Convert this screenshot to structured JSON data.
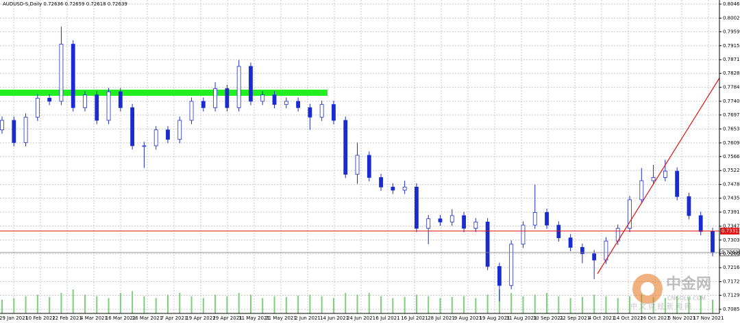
{
  "chart_data": {
    "type": "candlestick",
    "title": "AUDUSD-S,Daily  0.72636 0.72659 0.72618 0.72639",
    "x_labels": [
      "29 Jan 2021",
      "10 Feb 2021",
      "22 Feb 2021",
      "4 Mar 2021",
      "16 Mar 2021",
      "26 Mar 2021",
      "7 Apr 2021",
      "19 Apr 2021",
      "29 Apr 2021",
      "11 May 2021",
      "21 May 2021",
      "2 Jun 2021",
      "14 Jun 2021",
      "24 Jun 2021",
      "6 Jul 2021",
      "16 Jul 2021",
      "28 Jul 2021",
      "9 Aug 2021",
      "19 Aug 2021",
      "31 Aug 2021",
      "10 Sep 2021",
      "22 Sep 2021",
      "4 Oct 2021",
      "14 Oct 2021",
      "26 Oct 2021",
      "5 Nov 2021",
      "17 Nov 2021"
    ],
    "open": [
      0.765,
      0.768,
      0.761,
      0.769,
      0.775,
      0.774,
      0.792,
      0.772,
      0.776,
      0.768,
      0.777,
      0.772,
      0.76,
      0.76,
      0.765,
      0.762,
      0.768,
      0.774,
      0.772,
      0.778,
      0.772,
      0.785,
      0.774,
      0.776,
      0.773,
      0.774,
      0.772,
      0.769,
      0.773,
      0.768,
      0.751,
      0.757,
      0.75,
      0.747,
      0.746,
      0.747,
      0.734,
      0.737,
      0.736,
      0.738,
      0.734,
      0.736,
      0.722,
      0.716,
      0.729,
      0.735,
      0.739,
      0.735,
      0.731,
      0.728,
      0.726,
      0.724,
      0.73,
      0.734,
      0.743,
      0.749,
      0.75,
      0.752,
      0.744,
      0.738,
      0.733
    ],
    "high": [
      0.7692,
      0.7692,
      0.7702,
      0.7762,
      0.7762,
      0.7975,
      0.7932,
      0.7772,
      0.7772,
      0.7782,
      0.7782,
      0.7732,
      0.7612,
      0.7662,
      0.7662,
      0.7692,
      0.7752,
      0.7752,
      0.78,
      0.7792,
      0.787,
      0.7862,
      0.7772,
      0.7772,
      0.7752,
      0.7752,
      0.7732,
      0.7742,
      0.7742,
      0.7692,
      0.761,
      0.7582,
      0.7512,
      0.7482,
      0.749,
      0.7482,
      0.7382,
      0.7382,
      0.74,
      0.7392,
      0.7372,
      0.7372,
      0.7232,
      0.7302,
      0.7362,
      0.7478,
      0.7402,
      0.7362,
      0.7322,
      0.7292,
      0.7272,
      0.7312,
      0.7352,
      0.7442,
      0.753,
      0.754,
      0.7556,
      0.7532,
      0.7452,
      0.7392,
      0.7342
    ],
    "low": [
      0.7638,
      0.7598,
      0.7598,
      0.7678,
      0.7728,
      0.7728,
      0.7708,
      0.7708,
      0.7668,
      0.7668,
      0.7708,
      0.7588,
      0.753,
      0.7588,
      0.7608,
      0.7608,
      0.7668,
      0.7708,
      0.7708,
      0.7708,
      0.7708,
      0.7728,
      0.7728,
      0.7718,
      0.7718,
      0.7708,
      0.765,
      0.7678,
      0.7668,
      0.7498,
      0.748,
      0.7488,
      0.7458,
      0.7448,
      0.7448,
      0.7328,
      0.729,
      0.7348,
      0.7348,
      0.7328,
      0.7328,
      0.7208,
      0.711,
      0.7148,
      0.7278,
      0.7338,
      0.7338,
      0.7298,
      0.7268,
      0.723,
      0.718,
      0.7228,
      0.7288,
      0.7328,
      0.7418,
      0.7478,
      0.7488,
      0.7428,
      0.7368,
      0.7318,
      0.7252
    ],
    "close": [
      0.768,
      0.761,
      0.769,
      0.775,
      0.774,
      0.792,
      0.772,
      0.776,
      0.768,
      0.777,
      0.772,
      0.76,
      0.76,
      0.765,
      0.762,
      0.768,
      0.774,
      0.772,
      0.778,
      0.772,
      0.785,
      0.774,
      0.776,
      0.773,
      0.774,
      0.772,
      0.769,
      0.773,
      0.768,
      0.751,
      0.757,
      0.75,
      0.747,
      0.746,
      0.747,
      0.734,
      0.737,
      0.736,
      0.738,
      0.734,
      0.736,
      0.722,
      0.716,
      0.729,
      0.735,
      0.739,
      0.735,
      0.731,
      0.728,
      0.726,
      0.724,
      0.73,
      0.734,
      0.743,
      0.749,
      0.75,
      0.752,
      0.744,
      0.738,
      0.733,
      0.7264
    ],
    "volume": [
      40,
      45,
      50,
      55,
      48,
      60,
      70,
      55,
      50,
      45,
      60,
      65,
      50,
      45,
      55,
      60,
      50,
      45,
      55,
      50,
      60,
      55,
      45,
      50,
      48,
      52,
      55,
      50,
      45,
      60,
      55,
      60,
      50,
      45,
      48,
      55,
      50,
      45,
      48,
      50,
      45,
      55,
      70,
      60,
      50,
      55,
      60,
      50,
      45,
      48,
      55,
      50,
      45,
      50,
      55,
      48,
      45,
      50,
      48,
      52,
      40
    ],
    "up_color": "#ffffff",
    "down_color": "#1a2ccf",
    "volume_color": "#7ccf7c",
    "ylim": [
      0.7072,
      0.8059
    ],
    "yticks": [
      {
        "value": 0.8046,
        "label": "0.80460"
      },
      {
        "value": 0.8002,
        "label": "0.80020"
      },
      {
        "value": 0.7959,
        "label": "0.79590"
      },
      {
        "value": 0.7915,
        "label": "0.79150"
      },
      {
        "value": 0.7871,
        "label": "0.78710"
      },
      {
        "value": 0.7828,
        "label": "0.78280"
      },
      {
        "value": 0.7784,
        "label": "0.77840"
      },
      {
        "value": 0.774,
        "label": "0.77400"
      },
      {
        "value": 0.7697,
        "label": "0.76970"
      },
      {
        "value": 0.7653,
        "label": "0.76530"
      },
      {
        "value": 0.7609,
        "label": "0.76090"
      },
      {
        "value": 0.7566,
        "label": "0.75660"
      },
      {
        "value": 0.7522,
        "label": "0.75220"
      },
      {
        "value": 0.7478,
        "label": "0.74780"
      },
      {
        "value": 0.7435,
        "label": "0.74350"
      },
      {
        "value": 0.7391,
        "label": "0.73910"
      },
      {
        "value": 0.7347,
        "label": "0.73470"
      },
      {
        "value": 0.7303,
        "label": "0.73030"
      },
      {
        "value": 0.726,
        "label": "0.72600"
      },
      {
        "value": 0.7216,
        "label": "0.72160"
      },
      {
        "value": 0.7172,
        "label": "0.71720"
      },
      {
        "value": 0.7129,
        "label": "0.71290"
      },
      {
        "value": 0.7085,
        "label": "0.70850"
      }
    ],
    "grid": true,
    "hline": {
      "value": 0.73313,
      "label": "0.73313",
      "color": "#e01010"
    },
    "current_price": {
      "value": 0.72639,
      "label": "0.72639"
    },
    "watermark": "中金网",
    "watermark_sub": "CNGOLD.COM",
    "watermark_text": "中 文 财 经 新 闻 网"
  }
}
